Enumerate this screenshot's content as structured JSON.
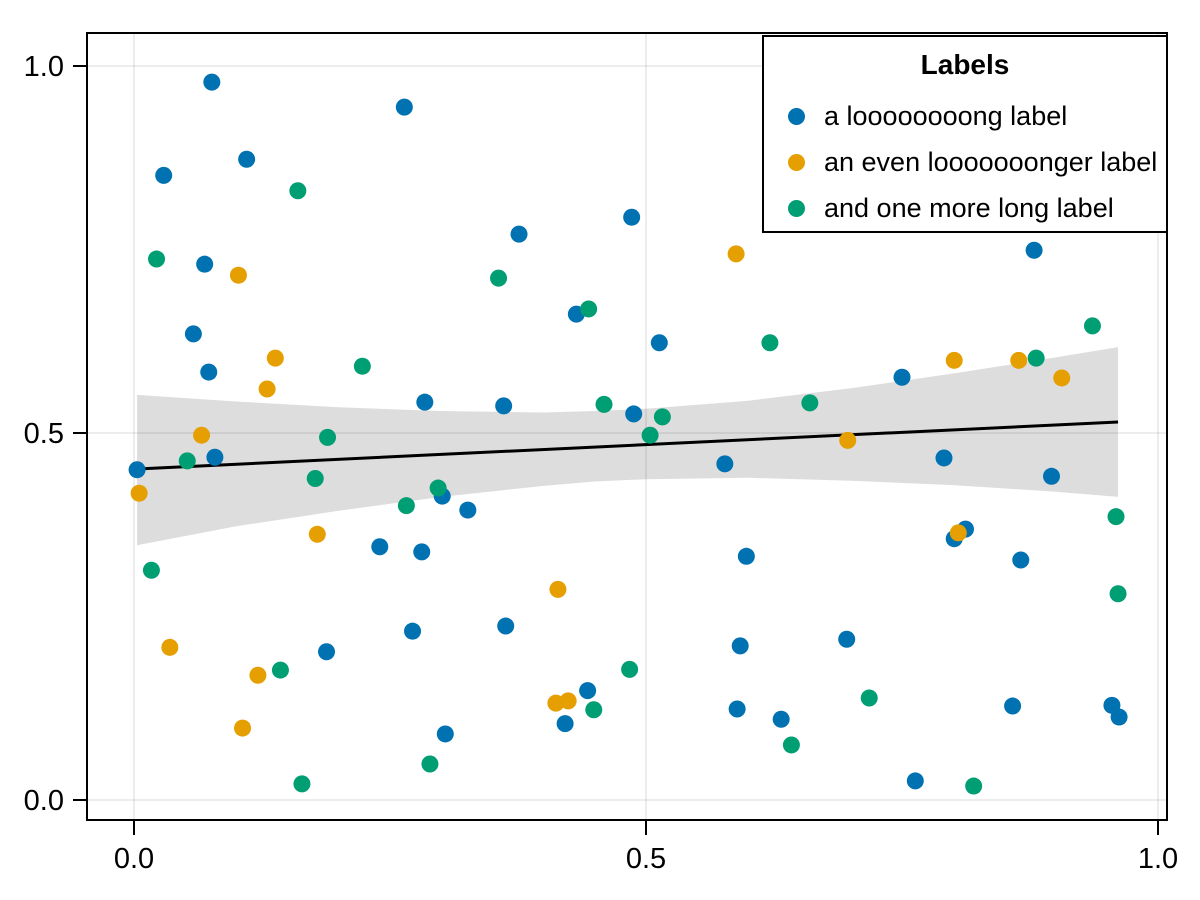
{
  "legend": {
    "title": "Labels",
    "items": [
      {
        "label": "a loooooooong label",
        "color": "#0072B2"
      },
      {
        "label": "an even looooooonger label",
        "color": "#E69F00"
      },
      {
        "label": "and one more long label",
        "color": "#009E73"
      }
    ],
    "position": "top-right"
  },
  "chart_data": {
    "type": "scatter",
    "title": "",
    "xlabel": "",
    "ylabel": "",
    "xlim": [
      -0.046,
      1.009
    ],
    "ylim": [
      -0.027,
      1.045
    ],
    "grid": true,
    "x_ticks": {
      "values": [
        0.0,
        0.5,
        1.0
      ],
      "labels": [
        "0.0",
        "0.5",
        "1.0"
      ]
    },
    "y_ticks": {
      "values": [
        0.0,
        0.5,
        1.0
      ],
      "labels": [
        "0.0",
        "0.5",
        "1.0"
      ]
    },
    "series": [
      {
        "name": "a loooooooong label",
        "color": "#0072B2",
        "points": [
          [
            0.076,
            0.978
          ],
          [
            0.264,
            0.944
          ],
          [
            0.11,
            0.873
          ],
          [
            0.029,
            0.851
          ],
          [
            0.486,
            0.794
          ],
          [
            0.376,
            0.771
          ],
          [
            0.879,
            0.749
          ],
          [
            0.069,
            0.73
          ],
          [
            0.432,
            0.662
          ],
          [
            0.058,
            0.635
          ],
          [
            0.513,
            0.623
          ],
          [
            0.073,
            0.583
          ],
          [
            0.75,
            0.576
          ],
          [
            0.284,
            0.542
          ],
          [
            0.361,
            0.537
          ],
          [
            0.488,
            0.526
          ],
          [
            0.079,
            0.467
          ],
          [
            0.791,
            0.466
          ],
          [
            0.577,
            0.458
          ],
          [
            0.003,
            0.45
          ],
          [
            0.896,
            0.441
          ],
          [
            0.301,
            0.414
          ],
          [
            0.326,
            0.395
          ],
          [
            0.812,
            0.369
          ],
          [
            0.801,
            0.356
          ],
          [
            0.24,
            0.345
          ],
          [
            0.281,
            0.338
          ],
          [
            0.598,
            0.332
          ],
          [
            0.866,
            0.327
          ],
          [
            0.363,
            0.237
          ],
          [
            0.272,
            0.23
          ],
          [
            0.696,
            0.219
          ],
          [
            0.592,
            0.21
          ],
          [
            0.188,
            0.202
          ],
          [
            0.443,
            0.149
          ],
          [
            0.955,
            0.129
          ],
          [
            0.858,
            0.128
          ],
          [
            0.589,
            0.124
          ],
          [
            0.962,
            0.113
          ],
          [
            0.632,
            0.11
          ],
          [
            0.421,
            0.104
          ],
          [
            0.304,
            0.09
          ],
          [
            0.763,
            0.026
          ]
        ]
      },
      {
        "name": "an even looooooonger label",
        "color": "#E69F00",
        "points": [
          [
            0.588,
            0.744
          ],
          [
            0.102,
            0.715
          ],
          [
            0.138,
            0.602
          ],
          [
            0.801,
            0.599
          ],
          [
            0.864,
            0.599
          ],
          [
            0.906,
            0.575
          ],
          [
            0.13,
            0.56
          ],
          [
            0.066,
            0.497
          ],
          [
            0.697,
            0.49
          ],
          [
            0.005,
            0.418
          ],
          [
            0.805,
            0.364
          ],
          [
            0.179,
            0.362
          ],
          [
            0.414,
            0.287
          ],
          [
            0.035,
            0.208
          ],
          [
            0.121,
            0.17
          ],
          [
            0.424,
            0.135
          ],
          [
            0.412,
            0.132
          ],
          [
            0.106,
            0.098
          ]
        ]
      },
      {
        "name": "and one more long label",
        "color": "#009E73",
        "points": [
          [
            0.16,
            0.83
          ],
          [
            0.022,
            0.737
          ],
          [
            0.356,
            0.711
          ],
          [
            0.444,
            0.669
          ],
          [
            0.936,
            0.646
          ],
          [
            0.621,
            0.623
          ],
          [
            0.881,
            0.602
          ],
          [
            0.223,
            0.591
          ],
          [
            0.66,
            0.541
          ],
          [
            0.459,
            0.539
          ],
          [
            0.516,
            0.522
          ],
          [
            0.504,
            0.497
          ],
          [
            0.189,
            0.494
          ],
          [
            0.052,
            0.462
          ],
          [
            0.177,
            0.438
          ],
          [
            0.297,
            0.425
          ],
          [
            0.266,
            0.401
          ],
          [
            0.959,
            0.386
          ],
          [
            0.017,
            0.313
          ],
          [
            0.961,
            0.281
          ],
          [
            0.484,
            0.178
          ],
          [
            0.143,
            0.177
          ],
          [
            0.718,
            0.139
          ],
          [
            0.449,
            0.123
          ],
          [
            0.642,
            0.075
          ],
          [
            0.289,
            0.049
          ],
          [
            0.164,
            0.022
          ],
          [
            0.82,
            0.019
          ]
        ]
      }
    ],
    "fit_line": {
      "x": [
        0.003,
        0.961
      ],
      "y": [
        0.451,
        0.515
      ],
      "color": "#000000"
    },
    "confidence_band": {
      "x": [
        0.003,
        0.1,
        0.2,
        0.3,
        0.4,
        0.45,
        0.5,
        0.6,
        0.7,
        0.8,
        0.9,
        0.961
      ],
      "upper": [
        0.552,
        0.543,
        0.535,
        0.53,
        0.528,
        0.53,
        0.533,
        0.544,
        0.561,
        0.581,
        0.603,
        0.617
      ],
      "lower": [
        0.347,
        0.373,
        0.394,
        0.413,
        0.428,
        0.434,
        0.437,
        0.439,
        0.435,
        0.429,
        0.42,
        0.413
      ],
      "color": "rgba(0,0,0,0.135)"
    }
  }
}
